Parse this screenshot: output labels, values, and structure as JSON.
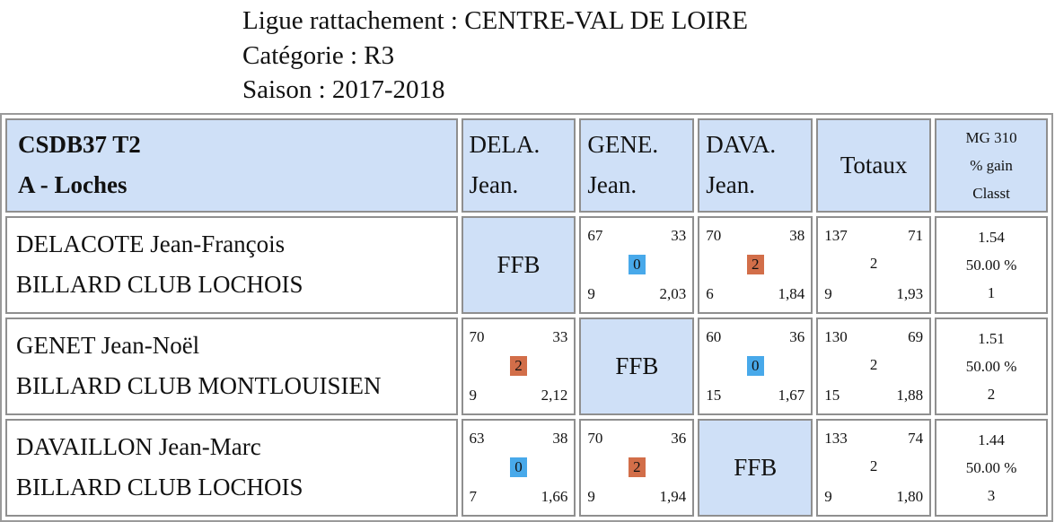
{
  "header": {
    "ligue": "Ligue rattachement : CENTRE-VAL DE LOIRE",
    "categorie": "Catégorie : R3",
    "saison": "Saison : 2017-2018"
  },
  "table": {
    "team_line1": "CSDB37 T2",
    "team_line2": "A - Loches",
    "opponents": [
      {
        "line1": "DELA.",
        "line2": "Jean."
      },
      {
        "line1": "GENE.",
        "line2": "Jean."
      },
      {
        "line1": "DAVA.",
        "line2": "Jean."
      }
    ],
    "totaux_label": "Totaux",
    "mg_header": {
      "line1": "MG 310",
      "line2": "% gain",
      "line3": "Classt"
    },
    "rows": [
      {
        "name": "DELACOTE Jean-François",
        "club": "BILLARD CLUB LOCHOIS",
        "cells": [
          {
            "ffb": "FFB"
          },
          {
            "tl": "67",
            "tr": "33",
            "mid": "0",
            "color": "#48a9ea",
            "bl": "9",
            "br": "2,03"
          },
          {
            "tl": "70",
            "tr": "38",
            "mid": "2",
            "color": "#d26e49",
            "bl": "6",
            "br": "1,84"
          }
        ],
        "total": {
          "tl": "137",
          "tr": "71",
          "mid": "2",
          "bl": "9",
          "br": "1,93"
        },
        "mg": {
          "avg": "1.54",
          "pct": "50.00 %",
          "rank": "1"
        }
      },
      {
        "name": "GENET Jean-Noël",
        "club": "BILLARD CLUB MONTLOUISIEN",
        "cells": [
          {
            "tl": "70",
            "tr": "33",
            "mid": "2",
            "color": "#d26e49",
            "bl": "9",
            "br": "2,12"
          },
          {
            "ffb": "FFB"
          },
          {
            "tl": "60",
            "tr": "36",
            "mid": "0",
            "color": "#48a9ea",
            "bl": "15",
            "br": "1,67"
          }
        ],
        "total": {
          "tl": "130",
          "tr": "69",
          "mid": "2",
          "bl": "15",
          "br": "1,88"
        },
        "mg": {
          "avg": "1.51",
          "pct": "50.00 %",
          "rank": "2"
        }
      },
      {
        "name": "DAVAILLON Jean-Marc",
        "club": "BILLARD CLUB LOCHOIS",
        "cells": [
          {
            "tl": "63",
            "tr": "38",
            "mid": "0",
            "color": "#48a9ea",
            "bl": "7",
            "br": "1,66"
          },
          {
            "tl": "70",
            "tr": "36",
            "mid": "2",
            "color": "#d26e49",
            "bl": "9",
            "br": "1,94"
          },
          {
            "ffb": "FFB"
          }
        ],
        "total": {
          "tl": "133",
          "tr": "74",
          "mid": "2",
          "bl": "9",
          "br": "1,80"
        },
        "mg": {
          "avg": "1.44",
          "pct": "50.00 %",
          "rank": "3"
        }
      }
    ]
  }
}
